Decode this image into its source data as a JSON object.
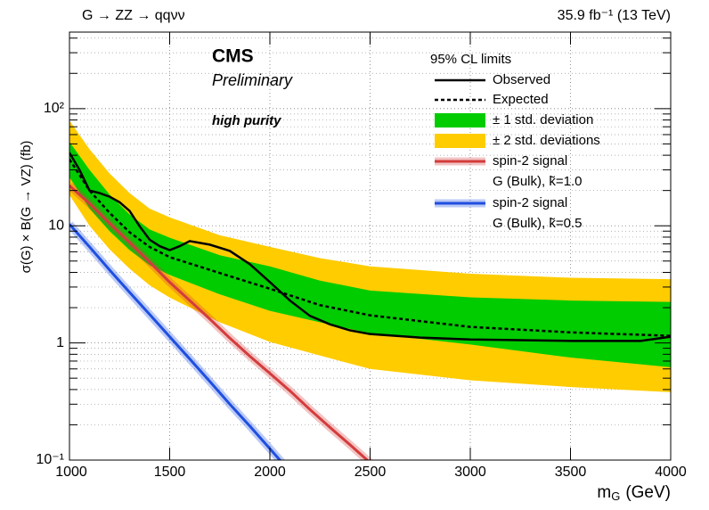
{
  "chart_data": {
    "type": "line",
    "title": "G → ZZ → qqνν",
    "luminosity": "35.9 fb⁻¹  (13 TeV)",
    "experiment": "CMS",
    "status": "Preliminary",
    "category": "high purity",
    "legend_title": "95% CL limits",
    "x_label": {
      "symbol": "m",
      "subscript": "G",
      "unit": "(GeV)"
    },
    "y_label": "σ(G) × B(G → VZ) (fb)",
    "xlim": [
      1000,
      4000
    ],
    "xticks": [
      1000,
      1500,
      2000,
      2500,
      3000,
      3500,
      4000
    ],
    "ylim": [
      0.1,
      450
    ],
    "yscale": "log",
    "yticks": [
      {
        "value": 0.1,
        "label": "10⁻¹"
      },
      1,
      10,
      {
        "value": 100,
        "label": "10²"
      }
    ],
    "yminorticks": [
      0.2,
      0.3,
      0.4,
      0.5,
      0.6,
      0.7,
      0.8,
      0.9,
      2,
      3,
      4,
      5,
      6,
      7,
      8,
      9,
      20,
      30,
      40,
      50,
      60,
      70,
      80,
      90,
      200,
      300,
      400
    ],
    "grid": true,
    "bands": [
      {
        "name": "± 1 std. deviation",
        "color": "#00cc00",
        "x": [
          1000,
          1100,
          1200,
          1300,
          1400,
          1500,
          1750,
          2000,
          2250,
          2500,
          3000,
          3500,
          4000
        ],
        "upper": [
          52,
          30,
          18.5,
          12.5,
          9.3,
          7.9,
          5.6,
          4.5,
          3.4,
          2.8,
          2.45,
          2.3,
          2.24
        ],
        "lower": [
          26,
          14,
          9,
          6.2,
          4.6,
          3.8,
          2.6,
          1.88,
          1.5,
          1.21,
          0.97,
          0.75,
          0.62
        ]
      },
      {
        "name": "± 2 std. deviations",
        "color": "#ffcc00",
        "x": [
          1000,
          1100,
          1200,
          1300,
          1400,
          1500,
          1750,
          2000,
          2250,
          2500,
          3000,
          3500,
          4000
        ],
        "upper": [
          79,
          45,
          28,
          19,
          14,
          11.8,
          8.3,
          6.6,
          5.3,
          4.5,
          3.9,
          3.6,
          3.5
        ],
        "lower": [
          18.3,
          10,
          6.3,
          4.3,
          3.1,
          2.44,
          1.5,
          1.02,
          0.78,
          0.6,
          0.48,
          0.42,
          0.38
        ]
      }
    ],
    "series": [
      {
        "name": "Observed",
        "color": "#000000",
        "dashed": false,
        "x": [
          1000,
          1050,
          1100,
          1150,
          1200,
          1250,
          1300,
          1350,
          1400,
          1450,
          1500,
          1550,
          1600,
          1700,
          1800,
          1900,
          2000,
          2100,
          2200,
          2300,
          2400,
          2500,
          2750,
          3000,
          3500,
          3850,
          4000
        ],
        "values": [
          42,
          30,
          20,
          19,
          17.7,
          15.9,
          13.4,
          9.9,
          7.6,
          6.7,
          6.2,
          6.7,
          7.4,
          6.9,
          6.1,
          4.7,
          3.3,
          2.3,
          1.7,
          1.44,
          1.28,
          1.19,
          1.11,
          1.07,
          1.04,
          1.04,
          1.13
        ]
      },
      {
        "name": "Expected",
        "color": "#000000",
        "dashed": true,
        "x": [
          1000,
          1100,
          1200,
          1300,
          1400,
          1500,
          1750,
          2000,
          2250,
          2500,
          3000,
          3500,
          4000
        ],
        "values": [
          36.9,
          20,
          12.9,
          8.8,
          6.6,
          5.4,
          3.95,
          2.9,
          2.1,
          1.72,
          1.37,
          1.23,
          1.15
        ]
      },
      {
        "name": "spin-2 signal",
        "model": "G (Bulk), k̃=1.0",
        "color": "#d43c3c",
        "dashed": false,
        "x": [
          1000,
          1100,
          1200,
          1300,
          1400,
          1500,
          1600,
          1700,
          1800,
          1900,
          2000,
          2100,
          2200,
          2300,
          2400,
          2500
        ],
        "values": [
          22,
          15.5,
          10.5,
          7.2,
          4.9,
          3.3,
          2.3,
          1.6,
          1.1,
          0.77,
          0.55,
          0.39,
          0.27,
          0.19,
          0.135,
          0.095
        ]
      },
      {
        "name": "spin-2 signal",
        "model": "G (Bulk), k̃=0.5",
        "color": "#1f4fe0",
        "dashed": false,
        "x": [
          1000,
          1100,
          1200,
          1300,
          1400,
          1500,
          1600,
          1700,
          1800,
          1900,
          2000,
          2100
        ],
        "values": [
          10.3,
          6.6,
          4.2,
          2.7,
          1.75,
          1.13,
          0.73,
          0.47,
          0.3,
          0.195,
          0.125,
          0.08
        ]
      }
    ]
  }
}
